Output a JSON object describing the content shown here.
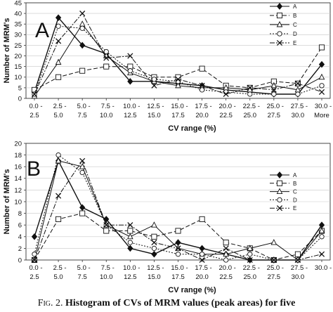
{
  "figure_caption": {
    "label": "Fig. 2.",
    "text": "Histogram of CVs of MRM values (peak areas) for five"
  },
  "chart_data": [
    {
      "type": "line",
      "panel_letter": "A",
      "xlabel": "CV range (%)",
      "ylabel": "Number of MRM's",
      "ylim": [
        0,
        45
      ],
      "yticks": [
        0,
        5,
        10,
        15,
        20,
        25,
        30,
        35,
        40,
        45
      ],
      "categories": [
        [
          "0.0 -",
          "2.5"
        ],
        [
          "2.5 -",
          "5.0"
        ],
        [
          "5.0 -",
          "7.5"
        ],
        [
          "7.5 -",
          "10.0"
        ],
        [
          "10.0 -",
          "12.5"
        ],
        [
          "12.5 -",
          "15.0"
        ],
        [
          "15.0 -",
          "17.5"
        ],
        [
          "17.5 -",
          "20.0"
        ],
        [
          "20.0 -",
          "22.5"
        ],
        [
          "22.5 -",
          "25.0"
        ],
        [
          "25.0 -",
          "27.5"
        ],
        [
          "27.5 -",
          "30.0"
        ],
        [
          "30.0 -",
          "More"
        ]
      ],
      "legend_position": "top-right",
      "series": [
        {
          "name": "A",
          "marker": "diamond-filled",
          "dash": "",
          "values": [
            3,
            38,
            25,
            21,
            8,
            8,
            7,
            6,
            4,
            3,
            2,
            2,
            16
          ]
        },
        {
          "name": "B",
          "marker": "square-open",
          "dash": "6,3",
          "values": [
            4,
            10,
            13,
            15,
            15,
            10,
            10,
            14,
            6,
            5,
            8,
            7,
            24
          ]
        },
        {
          "name": "C",
          "marker": "triangle-open",
          "dash": "",
          "values": [
            1,
            17,
            35,
            20,
            12,
            8,
            6,
            5,
            5,
            4,
            6,
            4,
            10
          ]
        },
        {
          "name": "D",
          "marker": "circle-open",
          "dash": "2,2",
          "values": [
            2,
            34,
            33,
            22,
            13,
            9,
            8,
            4,
            3,
            2,
            2,
            2,
            6
          ]
        },
        {
          "name": "E",
          "marker": "x",
          "dash": "7,2,2,2",
          "values": [
            2,
            27,
            40,
            19,
            20,
            6,
            9,
            6,
            2,
            5,
            4,
            7,
            3
          ]
        }
      ]
    },
    {
      "type": "line",
      "panel_letter": "B",
      "xlabel": "CV range (%)",
      "ylabel": "Number of MRM's",
      "ylim": [
        0,
        20
      ],
      "yticks": [
        0,
        2,
        4,
        6,
        8,
        10,
        12,
        14,
        16,
        18,
        20
      ],
      "categories": [
        [
          "0.0 -",
          "2.5"
        ],
        [
          "2.5 -",
          "5.0"
        ],
        [
          "5.0 -",
          "7.5"
        ],
        [
          "7.5 -",
          "10.0"
        ],
        [
          "10.0 -",
          "12.5"
        ],
        [
          "12.5 -",
          "15.0"
        ],
        [
          "15.0 -",
          "17.5"
        ],
        [
          "17.5 -",
          "20.0"
        ],
        [
          "20.0 -",
          "22.5"
        ],
        [
          "22.5 -",
          "25.0"
        ],
        [
          "25.0 -",
          "27.5"
        ],
        [
          "27.5 -",
          "30.0"
        ],
        [
          "30.0 -",
          ""
        ]
      ],
      "legend_position": "top-right",
      "series": [
        {
          "name": "A",
          "marker": "diamond-filled",
          "dash": "",
          "values": [
            4,
            17,
            9,
            7,
            2,
            1,
            3,
            2,
            1,
            0,
            0,
            0,
            6
          ]
        },
        {
          "name": "B",
          "marker": "square-open",
          "dash": "6,3",
          "values": [
            0,
            7,
            8,
            5,
            5,
            4,
            5,
            7,
            3,
            2,
            0,
            1,
            5
          ]
        },
        {
          "name": "C",
          "marker": "triangle-open",
          "dash": "",
          "values": [
            0,
            17,
            16,
            6,
            4,
            6,
            2,
            1,
            1,
            2,
            3,
            0,
            5
          ]
        },
        {
          "name": "D",
          "marker": "circle-open",
          "dash": "2,2",
          "values": [
            1,
            18,
            15,
            6,
            3,
            2,
            1,
            1,
            0,
            1,
            0,
            0,
            4
          ]
        },
        {
          "name": "E",
          "marker": "x",
          "dash": "7,2,2,2",
          "values": [
            0,
            11,
            17,
            6,
            6,
            3,
            2,
            0,
            2,
            0,
            0,
            0,
            1
          ]
        }
      ]
    }
  ]
}
